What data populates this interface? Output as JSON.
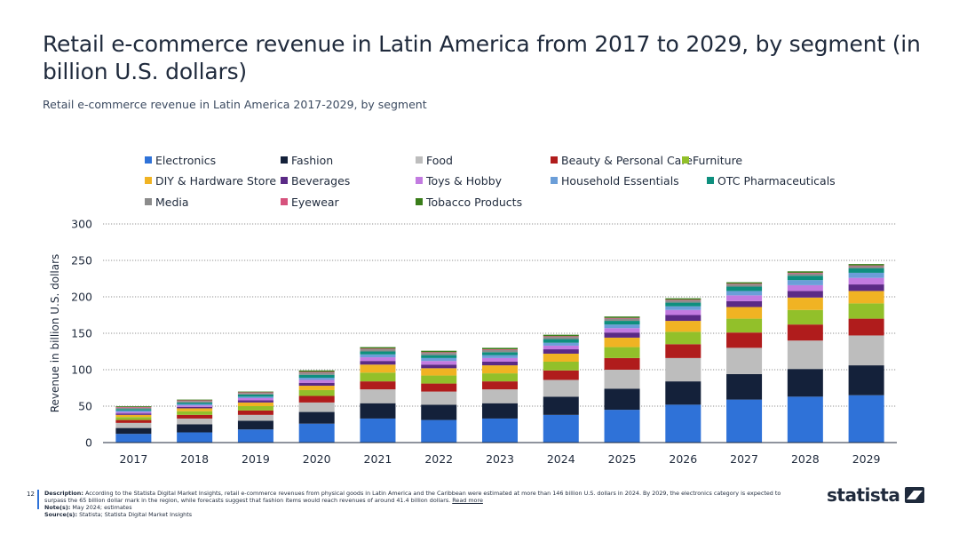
{
  "page": {
    "title": "Retail e-commerce revenue in Latin America from 2017 to 2029, by segment (in billion U.S. dollars)",
    "subtitle": "Retail e-commerce revenue in Latin America 2017-2029, by segment",
    "page_number": "12"
  },
  "footer": {
    "description_label": "Description:",
    "description_text": "According to the Statista Digital Market Insights, retail e-commerce revenues from physical goods in Latin America and the Caribbean were estimated at more than 146 billion U.S. dollars in 2024. By 2029, the electronics category is expected to surpass the 65 billion dollar mark in the region, while forecasts suggest that fashion items would reach revenues of around 41.4 billion dollars.",
    "read_more": "Read more",
    "notes_label": "Note(s):",
    "notes_text": "May 2024; estimates",
    "source_label": "Source(s):",
    "source_text": "Statista; Statista Digital Market Insights",
    "brand": "statista"
  },
  "chart_data": {
    "type": "bar",
    "stacked": true,
    "ylabel": "Revenue in billion U.S. dollars",
    "ylim": [
      0,
      300
    ],
    "yticks": [
      0,
      50,
      100,
      150,
      200,
      250,
      300
    ],
    "grid": true,
    "legend_position": "top",
    "categories": [
      "2017",
      "2018",
      "2019",
      "2020",
      "2021",
      "2022",
      "2023",
      "2024",
      "2025",
      "2026",
      "2027",
      "2028",
      "2029"
    ],
    "series": [
      {
        "name": "Electronics",
        "color": "#2f72d8",
        "values": [
          12,
          14,
          18,
          26,
          33,
          31,
          33,
          38,
          45,
          52,
          59,
          63,
          65
        ]
      },
      {
        "name": "Fashion",
        "color": "#14213a",
        "values": [
          8,
          11,
          12,
          16,
          21,
          21,
          21,
          25,
          29,
          32,
          35,
          38,
          41
        ]
      },
      {
        "name": "Food",
        "color": "#bdbdbd",
        "values": [
          7,
          8,
          8,
          13,
          19,
          18,
          19,
          23,
          26,
          32,
          36,
          39,
          41
        ]
      },
      {
        "name": "Beauty & Personal Care",
        "color": "#b01c1c",
        "values": [
          4,
          5,
          6,
          9,
          11,
          11,
          11,
          13,
          16,
          19,
          21,
          22,
          23
        ]
      },
      {
        "name": "Furniture",
        "color": "#92c02a",
        "values": [
          4,
          5,
          6,
          8,
          12,
          11,
          11,
          12,
          15,
          17,
          19,
          20,
          21
        ]
      },
      {
        "name": "DIY & Hardware Store",
        "color": "#f0b323",
        "values": [
          3,
          4,
          5,
          6,
          11,
          10,
          11,
          11,
          13,
          15,
          16,
          17,
          17
        ]
      },
      {
        "name": "Beverages",
        "color": "#5b2a86",
        "values": [
          2,
          2,
          3,
          4,
          5,
          5,
          5,
          6,
          7,
          8,
          8,
          9,
          9
        ]
      },
      {
        "name": "Toys & Hobby",
        "color": "#c27be0",
        "values": [
          2,
          2,
          3,
          4,
          5,
          5,
          5,
          5,
          6,
          7,
          8,
          8,
          9
        ]
      },
      {
        "name": "Household Essentials",
        "color": "#6b9ed8",
        "values": [
          2,
          2,
          2,
          3,
          4,
          4,
          4,
          4,
          5,
          5,
          6,
          7,
          7
        ]
      },
      {
        "name": "OTC Pharmaceuticals",
        "color": "#0e8f7e",
        "values": [
          2,
          2,
          3,
          4,
          4,
          4,
          4,
          5,
          5,
          5,
          6,
          6,
          6
        ]
      },
      {
        "name": "Media",
        "color": "#8c8c8c",
        "values": [
          2,
          2,
          2,
          3,
          3,
          3,
          3,
          3,
          3,
          3,
          3,
          3,
          3
        ]
      },
      {
        "name": "Eyewear",
        "color": "#d6527d",
        "values": [
          1,
          1,
          1,
          1,
          1,
          1,
          1,
          1,
          1,
          1,
          1,
          1,
          1
        ]
      },
      {
        "name": "Tobacco Products",
        "color": "#3a7d1a",
        "values": [
          1,
          1,
          1,
          2,
          2,
          2,
          2,
          2,
          2,
          2,
          2,
          2,
          2
        ]
      }
    ]
  }
}
